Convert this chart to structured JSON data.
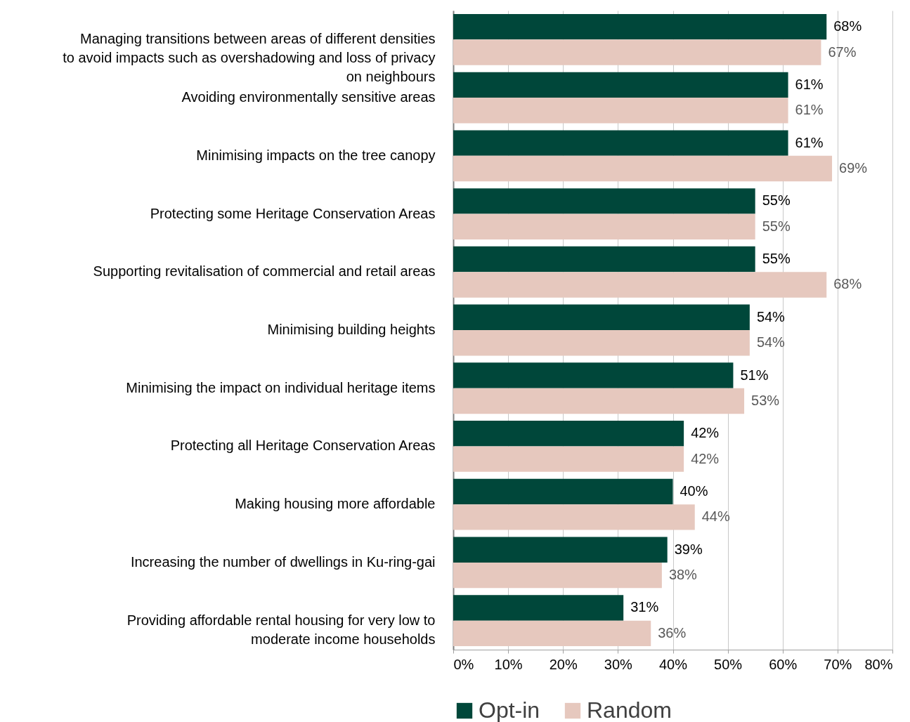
{
  "chart_data": {
    "type": "bar",
    "orientation": "horizontal",
    "categories": [
      "Managing transitions between areas of different densities to avoid impacts such as overshadowing and loss of privacy on neighbours",
      "Avoiding environmentally sensitive areas",
      "Minimising impacts on the tree canopy",
      "Protecting some Heritage Conservation Areas",
      "Supporting revitalisation of commercial and retail areas",
      "Minimising building heights",
      "Minimising the impact on individual heritage items",
      "Protecting all Heritage Conservation Areas",
      "Making housing more affordable",
      "Increasing the number of dwellings in Ku-ring-gai",
      "Providing affordable rental housing for very low to moderate income households"
    ],
    "series": [
      {
        "name": "Opt-in",
        "color": "#00473a",
        "values": [
          68,
          61,
          61,
          55,
          55,
          54,
          51,
          42,
          40,
          39,
          31
        ],
        "value_labels": [
          "68%",
          "61%",
          "61%",
          "55%",
          "55%",
          "54%",
          "51%",
          "42%",
          "40%",
          "39%",
          "31%"
        ]
      },
      {
        "name": "Random",
        "color": "#e6c8be",
        "values": [
          67,
          61,
          69,
          55,
          68,
          54,
          53,
          42,
          44,
          38,
          36
        ],
        "value_labels": [
          "67%",
          "61%",
          "69%",
          "55%",
          "68%",
          "54%",
          "53%",
          "42%",
          "44%",
          "38%",
          "36%"
        ]
      }
    ],
    "xlim": [
      0,
      80
    ],
    "xticks": [
      {
        "value": 0,
        "label": "0%"
      },
      {
        "value": 10,
        "label": "10%"
      },
      {
        "value": 20,
        "label": "20%"
      },
      {
        "value": 30,
        "label": "30%"
      },
      {
        "value": 40,
        "label": "40%"
      },
      {
        "value": 50,
        "label": "50%"
      },
      {
        "value": 60,
        "label": "60%"
      },
      {
        "value": 70,
        "label": "70%"
      },
      {
        "value": 80,
        "label": "80%"
      }
    ],
    "grid": "x",
    "legend": "bottom"
  }
}
